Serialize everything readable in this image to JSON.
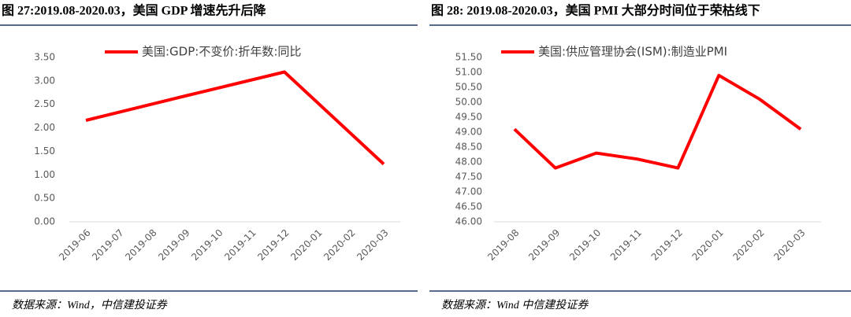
{
  "chart_data": [
    {
      "type": "line",
      "title": "图 27:2019.08-2020.03，美国 GDP 增速先升后降",
      "source": "数据来源：Wind，中信建投证券",
      "categories": [
        "2019-06",
        "2019-07",
        "2019-08",
        "2019-09",
        "2019-10",
        "2019-11",
        "2019-12",
        "2020-01",
        "2020-02",
        "2020-03"
      ],
      "series": [
        {
          "name": "美国:GDP:不变价:折年数:同比",
          "color": "#ff0000",
          "x": [
            "2019-06",
            "2019-09",
            "2019-12",
            "2020-03"
          ],
          "values": [
            2.16,
            2.68,
            3.19,
            1.23
          ]
        }
      ],
      "ylim": [
        0,
        3.5
      ],
      "yticks": [
        {
          "value": 0,
          "label": "0.00"
        },
        {
          "value": 0.5,
          "label": "0.50"
        },
        {
          "value": 1,
          "label": "1.00"
        },
        {
          "value": 1.5,
          "label": "1.50"
        },
        {
          "value": 2,
          "label": "2.00"
        },
        {
          "value": 2.5,
          "label": "2.50"
        },
        {
          "value": 3,
          "label": "3.00"
        },
        {
          "value": 3.5,
          "label": "3.50"
        }
      ],
      "legend": "top"
    },
    {
      "type": "line",
      "title": "图 28: 2019.08-2020.03，美国 PMI 大部分时间位于荣枯线下",
      "source": "数据来源：Wind 中信建投证券",
      "categories": [
        "2019-08",
        "2019-09",
        "2019-10",
        "2019-11",
        "2019-12",
        "2020-01",
        "2020-02",
        "2020-03"
      ],
      "series": [
        {
          "name": "美国:供应管理协会(ISM):制造业PMI",
          "color": "#ff0000",
          "values": [
            49.1,
            47.8,
            48.3,
            48.1,
            47.8,
            50.9,
            50.1,
            49.1
          ]
        }
      ],
      "ylim": [
        46,
        51.5
      ],
      "yticks": [
        {
          "value": 46,
          "label": "46.00"
        },
        {
          "value": 46.5,
          "label": "46.50"
        },
        {
          "value": 47,
          "label": "47.00"
        },
        {
          "value": 47.5,
          "label": "47.50"
        },
        {
          "value": 48,
          "label": "48.00"
        },
        {
          "value": 48.5,
          "label": "48.50"
        },
        {
          "value": 49,
          "label": "49.00"
        },
        {
          "value": 49.5,
          "label": "49.50"
        },
        {
          "value": 50,
          "label": "50.00"
        },
        {
          "value": 50.5,
          "label": "50.50"
        },
        {
          "value": 51,
          "label": "51.00"
        },
        {
          "value": 51.5,
          "label": "51.50"
        }
      ],
      "legend": "top"
    }
  ]
}
